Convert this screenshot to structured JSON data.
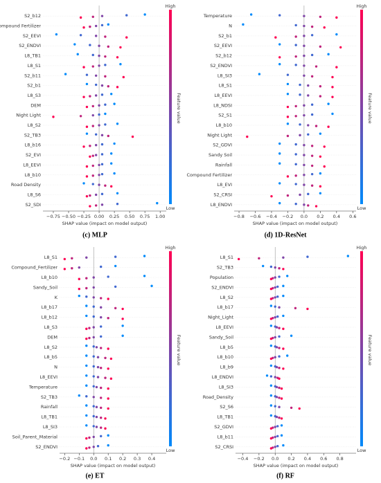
{
  "chart_data": [
    {
      "type": "beeswarm",
      "caption": "(c) MLP",
      "xlabel": "SHAP value (impact on model output)",
      "colorbar_label": "Feature value",
      "colorbar_high": "High",
      "colorbar_low": "Low",
      "low_color": "#008afb",
      "high_color": "#ff0052",
      "xlim": [
        -0.92,
        1.1
      ],
      "xticks": [
        {
          "value": -0.75,
          "label": "−0.75"
        },
        {
          "value": -0.5,
          "label": "−0.50"
        },
        {
          "value": -0.25,
          "label": "−0.25"
        },
        {
          "value": 0,
          "label": "0.00"
        },
        0.25,
        {
          "value": 0.5,
          "label": "0.50"
        },
        0.75,
        {
          "value": 1,
          "label": "1.00"
        }
      ],
      "categories": [
        "S2_b12",
        "Compound Fertilizer",
        "S2_EEVI",
        "S2_ENDVI",
        "L8_TB1",
        "L8_S1",
        "S2_b11",
        "S2_b1",
        "L8_S3",
        "DEM",
        "Night Light",
        "L8_S2",
        "S2_TB3",
        "L8_b16",
        "S2_EVI",
        "L8_EEVI",
        "L8_b10",
        "Road Density",
        "L8_S6",
        "S2_SDI"
      ],
      "values": [
        [
          0.75,
          0.45,
          0.05,
          -0.1,
          -0.3
        ],
        [
          0.15,
          0.05,
          -0.05,
          -0.15,
          -0.25
        ],
        [
          -0.7,
          -0.3,
          -0.05,
          0.1,
          0.45
        ],
        [
          -0.4,
          -0.15,
          0.0,
          0.15,
          0.35
        ],
        [
          -0.35,
          -0.1,
          0.0,
          0.1,
          0.3
        ],
        [
          0.35,
          0.1,
          0.0,
          -0.1,
          -0.25
        ],
        [
          -0.55,
          -0.2,
          -0.05,
          0.1,
          0.4
        ],
        [
          -0.2,
          -0.05,
          0.05,
          0.15,
          0.3
        ],
        [
          0.2,
          0.05,
          -0.05,
          -0.15,
          -0.25
        ],
        [
          0.25,
          0.1,
          0.0,
          -0.1,
          -0.2
        ],
        [
          0.1,
          0.0,
          -0.1,
          -0.3,
          -0.75
        ],
        [
          0.3,
          0.1,
          0.0,
          -0.1,
          -0.2
        ],
        [
          -0.2,
          -0.05,
          0.05,
          0.15,
          0.55
        ],
        [
          0.25,
          0.05,
          -0.05,
          -0.15,
          -0.25
        ],
        [
          0.2,
          0.05,
          -0.05,
          -0.1,
          -0.15
        ],
        [
          0.2,
          0.05,
          0.0,
          -0.1,
          -0.2
        ],
        [
          0.25,
          0.05,
          0.0,
          -0.1,
          -0.2
        ],
        [
          -0.25,
          -0.1,
          0.0,
          0.1,
          0.2
        ],
        [
          0.3,
          0.05,
          -0.05,
          -0.15,
          -0.2
        ],
        [
          0.95,
          0.3,
          0.05,
          -0.05,
          -0.15
        ]
      ]
    },
    {
      "type": "beeswarm",
      "caption": "(d) 1D-ResNet",
      "xlabel": "SHAP value (impact on model output)",
      "colorbar_label": "Feature value",
      "colorbar_high": "High",
      "colorbar_low": "Low",
      "low_color": "#008afb",
      "high_color": "#ff0052",
      "xlim": [
        -0.86,
        0.64
      ],
      "xticks": [
        {
          "value": -0.8,
          "label": "−0.8"
        },
        {
          "value": -0.6,
          "label": "−0.6"
        },
        {
          "value": -0.4,
          "label": "−0.4"
        },
        {
          "value": -0.2,
          "label": "−0.2"
        },
        {
          "value": 0,
          "label": "0.0"
        },
        0.2,
        0.4,
        0.6
      ],
      "categories": [
        "Temperature",
        "N",
        "S2_b1",
        "S2_EEVI",
        "S2_b12",
        "S2_ENDVI",
        "L8_SI3",
        "L8_S1",
        "L8_EEVI",
        "L8_NDSI",
        "S2_S1",
        "L8_b10",
        "Night Light",
        "S2_GDVI",
        "Sandy Soil",
        "Rainfall",
        "Compound Fertilizer",
        "L8_EVI",
        "S2_CRSI",
        "L8_ENDVI"
      ],
      "values": [
        [
          -0.65,
          -0.3,
          0.0,
          0.2,
          0.4
        ],
        [
          -0.75,
          -0.1,
          0.0,
          0.1,
          0.25
        ],
        [
          0.4,
          0.1,
          0.0,
          -0.1,
          -0.35
        ],
        [
          -0.3,
          -0.1,
          0.0,
          0.2,
          0.45
        ],
        [
          0.3,
          0.1,
          0.0,
          -0.1,
          -0.3
        ],
        [
          -0.3,
          -0.1,
          0.0,
          0.15,
          0.4
        ],
        [
          -0.55,
          -0.2,
          0.0,
          0.1,
          0.35
        ],
        [
          -0.2,
          -0.05,
          0.05,
          0.2,
          0.35
        ],
        [
          -0.2,
          -0.05,
          0.05,
          0.2,
          0.35
        ],
        [
          0.3,
          0.1,
          0.0,
          -0.1,
          -0.2
        ],
        [
          0.35,
          0.1,
          0.0,
          -0.1,
          -0.2
        ],
        [
          -0.2,
          -0.05,
          0.05,
          0.15,
          0.3
        ],
        [
          0.2,
          0.05,
          -0.05,
          -0.2,
          -0.7
        ],
        [
          -0.3,
          -0.1,
          0.0,
          0.1,
          0.25
        ],
        [
          -0.3,
          -0.1,
          0.0,
          0.1,
          0.2
        ],
        [
          -0.3,
          -0.1,
          0.0,
          0.1,
          0.25
        ],
        [
          0.2,
          0.1,
          0.0,
          -0.1,
          -0.2
        ],
        [
          -0.3,
          -0.1,
          0.0,
          0.1,
          0.2
        ],
        [
          0.2,
          0.05,
          -0.05,
          -0.2,
          -0.4
        ],
        [
          -0.3,
          -0.1,
          0.0,
          0.05,
          0.15
        ]
      ]
    },
    {
      "type": "beeswarm",
      "caption": "(e) ET",
      "xlabel": "SHAP value (impact on model output)",
      "colorbar_label": "Feature value",
      "colorbar_high": "High",
      "colorbar_low": "Low",
      "low_color": "#008afb",
      "high_color": "#ff0052",
      "xlim": [
        -0.235,
        0.5
      ],
      "xticks": [
        {
          "value": -0.2,
          "label": "−0.2"
        },
        {
          "value": -0.1,
          "label": "−0.1"
        },
        {
          "value": 0,
          "label": "0.0"
        },
        0.1,
        0.2,
        0.3,
        0.4
      ],
      "categories": [
        "L8_S1",
        "Compound_Fertilizer",
        "L8_b10",
        "Sandy_Soil",
        "K",
        "L8_b17",
        "L8_b12",
        "L8_S3",
        "DEM",
        "L8_S2",
        "L8_b5",
        "N",
        "L8_EEVI",
        "Temperature",
        "S2_TB3",
        "Rainfall",
        "L8_TB1",
        "L8_SI3",
        "Soil_Parent_Material",
        "S2_ENDVI"
      ],
      "values": [
        [
          0.35,
          0.15,
          -0.05,
          -0.15,
          -0.2
        ],
        [
          0.15,
          0.05,
          -0.1,
          -0.15,
          -0.2
        ],
        [
          0.35,
          0.1,
          0.0,
          -0.05,
          -0.1
        ],
        [
          0.4,
          0.15,
          0.0,
          -0.05,
          -0.1
        ],
        [
          -0.1,
          -0.05,
          0.0,
          0.05,
          0.1
        ],
        [
          -0.05,
          0.0,
          0.05,
          0.15,
          0.2
        ],
        [
          -0.05,
          0.0,
          0.05,
          0.1,
          0.2
        ],
        [
          0.2,
          0.05,
          0.0,
          -0.03,
          -0.05
        ],
        [
          0.2,
          0.05,
          0.0,
          -0.03,
          -0.05
        ],
        [
          -0.05,
          0.0,
          0.02,
          0.05,
          0.1
        ],
        [
          -0.05,
          0.0,
          0.03,
          0.08,
          0.12
        ],
        [
          -0.05,
          0.0,
          0.03,
          0.05,
          0.1
        ],
        [
          -0.05,
          0.0,
          0.03,
          0.08,
          0.12
        ],
        [
          -0.05,
          0.0,
          0.02,
          0.05,
          0.1
        ],
        [
          -0.1,
          -0.05,
          0.0,
          0.05,
          0.1
        ],
        [
          -0.05,
          0.0,
          0.02,
          0.05,
          0.1
        ],
        [
          -0.05,
          0.0,
          0.02,
          0.05,
          0.08
        ],
        [
          -0.05,
          0.0,
          0.02,
          0.05,
          0.08
        ],
        [
          0.1,
          0.05,
          0.0,
          -0.03,
          -0.05
        ],
        [
          0.1,
          0.03,
          0.0,
          -0.03,
          -0.05
        ]
      ]
    },
    {
      "type": "beeswarm",
      "caption": "(f) RF",
      "xlabel": "SHAP value (impact on model output)",
      "colorbar_label": "Feature value",
      "colorbar_high": "High",
      "colorbar_low": "Low",
      "low_color": "#008afb",
      "high_color": "#ff0052",
      "xlim": [
        -0.49,
        1.0
      ],
      "xticks": [
        {
          "value": -0.4,
          "label": "−0.4"
        },
        {
          "value": -0.2,
          "label": "−0.2"
        },
        {
          "value": 0,
          "label": "0.0"
        },
        0.2,
        0.4,
        0.6,
        0.8
      ],
      "categories": [
        "L8_S1",
        "S2_TB3",
        "Population",
        "S2_ENDVI",
        "L8_S2",
        "L8_b17",
        "Night_Light",
        "L8_EEVI",
        "Sandy_Soil",
        "L8_b5",
        "L8_b10",
        "L8_b9",
        "L8_ENDVI",
        "L8_SI3",
        "Road_Density",
        "S2_S6",
        "L8_TB1",
        "S2_GDVI",
        "L8_b11",
        "S2_CRSI"
      ],
      "values": [
        [
          0.9,
          0.4,
          0.1,
          -0.2,
          -0.45
        ],
        [
          -0.15,
          -0.05,
          0.0,
          0.05,
          0.1
        ],
        [
          0.15,
          0.05,
          0.0,
          -0.03,
          -0.05
        ],
        [
          0.1,
          0.03,
          0.0,
          -0.03,
          -0.05
        ],
        [
          0.1,
          0.03,
          0.0,
          -0.03,
          -0.05
        ],
        [
          -0.05,
          0.0,
          0.05,
          0.25,
          0.4
        ],
        [
          0.1,
          0.03,
          0.0,
          -0.03,
          -0.05
        ],
        [
          -0.05,
          0.0,
          0.02,
          0.05,
          0.1
        ],
        [
          0.2,
          0.05,
          0.0,
          -0.03,
          -0.05
        ],
        [
          -0.05,
          0.0,
          0.02,
          0.05,
          0.1
        ],
        [
          0.15,
          0.05,
          0.0,
          -0.03,
          -0.05
        ],
        [
          -0.05,
          0.0,
          0.02,
          0.05,
          0.1
        ],
        [
          -0.1,
          -0.05,
          0.0,
          0.03,
          0.05
        ],
        [
          -0.05,
          0.0,
          0.02,
          0.05,
          0.08
        ],
        [
          -0.05,
          0.0,
          0.02,
          0.05,
          0.08
        ],
        [
          -0.05,
          0.0,
          0.05,
          0.2,
          0.3
        ],
        [
          -0.05,
          0.0,
          0.02,
          0.05,
          0.08
        ],
        [
          0.08,
          0.03,
          0.0,
          -0.03,
          -0.05
        ],
        [
          0.08,
          0.03,
          0.0,
          -0.03,
          -0.05
        ],
        [
          0.1,
          0.03,
          0.0,
          -0.03,
          -0.05
        ]
      ]
    }
  ]
}
